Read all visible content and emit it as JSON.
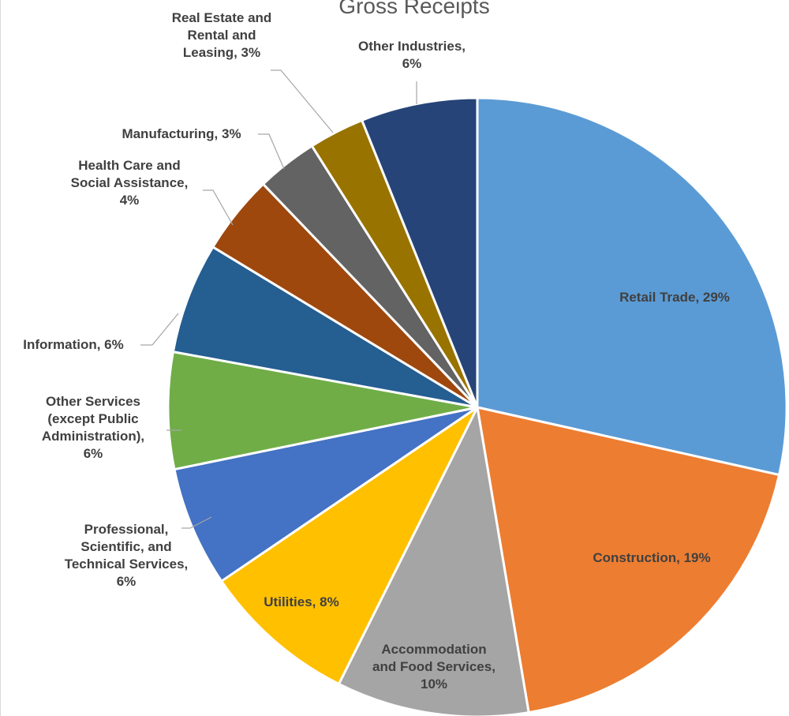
{
  "chart_data": {
    "type": "pie",
    "title": "Gross Receipts",
    "start_angle_deg": 0,
    "direction": "clockwise",
    "slices": [
      {
        "label": "Retail Trade",
        "percent_label": "29%",
        "value": 29.5,
        "color": "#5B9BD5"
      },
      {
        "label": "Construction",
        "percent_label": "19%",
        "value": 19.5,
        "color": "#ED7D31"
      },
      {
        "label": "Accommodation and Food Services",
        "percent_label": "10%",
        "value": 10.4,
        "color": "#A5A5A5"
      },
      {
        "label": "Utilities",
        "percent_label": "8%",
        "value": 8.4,
        "color": "#FFC000"
      },
      {
        "label": "Professional, Scientific, and Technical Services",
        "percent_label": "6%",
        "value": 6.5,
        "color": "#4472C4"
      },
      {
        "label": "Other Services (except Public Administration)",
        "percent_label": "6%",
        "value": 6.3,
        "color": "#70AD47"
      },
      {
        "label": "Information",
        "percent_label": "6%",
        "value": 6.0,
        "color": "#255E91"
      },
      {
        "label": "Health Care and Social Assistance",
        "percent_label": "4%",
        "value": 4.3,
        "color": "#9E480E"
      },
      {
        "label": "Manufacturing",
        "percent_label": "3%",
        "value": 3.3,
        "color": "#636363"
      },
      {
        "label": "Real Estate and Rental and Leasing",
        "percent_label": "3%",
        "value": 3.0,
        "color": "#997300"
      },
      {
        "label": "Other Industries",
        "percent_label": "6%",
        "value": 6.3,
        "color": "#264478"
      }
    ]
  }
}
